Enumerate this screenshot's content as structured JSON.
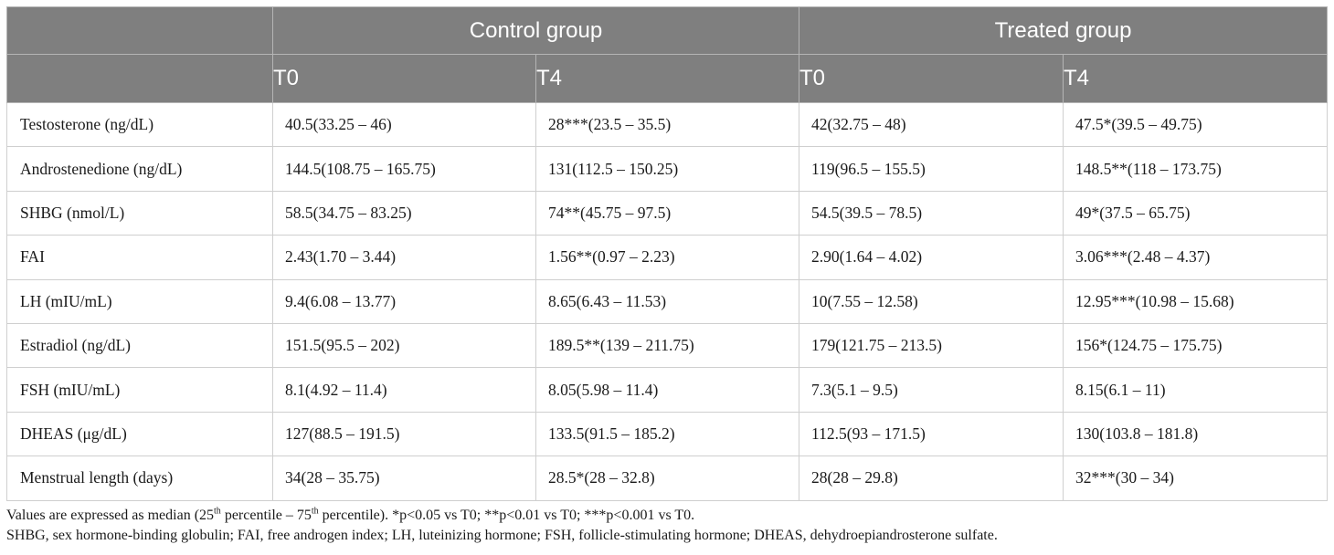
{
  "header": {
    "groups": [
      "Control group",
      "Treated group"
    ],
    "timepoints": [
      "T0",
      "T4",
      "T0",
      "T4"
    ]
  },
  "rows": [
    {
      "label": "Testosterone (ng/dL)",
      "cells": [
        "40.5(33.25 – 46)",
        "28***(23.5 – 35.5)",
        "42(32.75 – 48)",
        "47.5*(39.5 – 49.75)"
      ]
    },
    {
      "label": "Androstenedione (ng/dL)",
      "cells": [
        "144.5(108.75 – 165.75)",
        "131(112.5 – 150.25)",
        "119(96.5 – 155.5)",
        "148.5**(118 – 173.75)"
      ]
    },
    {
      "label": "SHBG (nmol/L)",
      "cells": [
        "58.5(34.75 – 83.25)",
        "74**(45.75 – 97.5)",
        "54.5(39.5 – 78.5)",
        "49*(37.5 – 65.75)"
      ]
    },
    {
      "label": "FAI",
      "cells": [
        "2.43(1.70 – 3.44)",
        "1.56**(0.97 – 2.23)",
        "2.90(1.64 – 4.02)",
        "3.06***(2.48 – 4.37)"
      ]
    },
    {
      "label": "LH (mIU/mL)",
      "cells": [
        "9.4(6.08 – 13.77)",
        "8.65(6.43 – 11.53)",
        "10(7.55 – 12.58)",
        "12.95***(10.98 – 15.68)"
      ]
    },
    {
      "label": "Estradiol (ng/dL)",
      "cells": [
        "151.5(95.5 – 202)",
        "189.5**(139 – 211.75)",
        "179(121.75 – 213.5)",
        "156*(124.75 – 175.75)"
      ]
    },
    {
      "label": "FSH (mIU/mL)",
      "cells": [
        "8.1(4.92 – 11.4)",
        "8.05(5.98 – 11.4)",
        "7.3(5.1 – 9.5)",
        "8.15(6.1 – 11)"
      ]
    },
    {
      "label": "DHEAS (μg/dL)",
      "cells": [
        "127(88.5 – 191.5)",
        "133.5(91.5 – 185.2)",
        "112.5(93 – 171.5)",
        "130(103.8 – 181.8)"
      ]
    },
    {
      "label": "Menstrual length (days)",
      "cells": [
        "34(28 – 35.75)",
        "28.5*(28 – 32.8)",
        "28(28 – 29.8)",
        "32***(30 – 34)"
      ]
    }
  ],
  "notes": {
    "line1_a": "Values are expressed as median (25",
    "line1_sup1": "th",
    "line1_b": " percentile – 75",
    "line1_sup2": "th",
    "line1_c": " percentile). *p<0.05 vs T0; **p<0.01 vs T0; ***p<0.001 vs T0.",
    "line2": "SHBG, sex hormone-binding globulin; FAI, free androgen index; LH, luteinizing hormone; FSH, follicle-stimulating hormone; DHEAS, dehydroepiandrosterone sulfate."
  },
  "colors": {
    "header_bg": "#7f7f7f",
    "header_text": "#ffffff",
    "grid": "#cfcfcf"
  }
}
